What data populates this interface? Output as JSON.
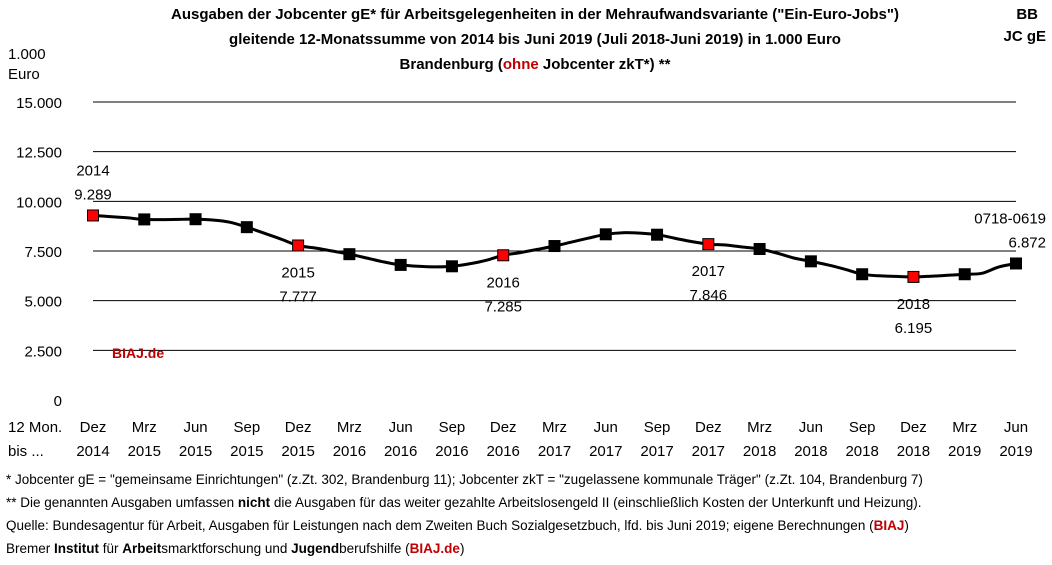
{
  "header": {
    "title_line1": "Ausgaben der Jobcenter gE* für Arbeitsgelegenheiten in der Mehraufwandsvariante (\"Ein-Euro-Jobs\")",
    "title_line2": "gleitende 12-Monatssumme von 2014 bis Juni 2019 (Juli 2018-Juni 2019) in 1.000 Euro",
    "title_line3_pre": "Brandenburg (",
    "title_line3_red": "ohne",
    "title_line3_post": " Jobcenter zkT*) **",
    "corner_line1": "BB",
    "corner_line2": "JC gE"
  },
  "yunit": {
    "line1": "1.000",
    "line2": "Euro"
  },
  "xunit": {
    "line1": "12 Mon.",
    "line2": "bis ..."
  },
  "watermark": "BIAJ.de",
  "colors": {
    "line": "#000000",
    "marker": "#000000",
    "highlight": "#ff0000",
    "accent": "#c00000",
    "grid": "#000000"
  },
  "chart_data": {
    "type": "line",
    "ylim": [
      0,
      15000
    ],
    "yticks": [
      0,
      2500,
      5000,
      7500,
      10000,
      12500,
      15000
    ],
    "ytick_labels": [
      "0",
      "2.500",
      "5.000",
      "7.500",
      "10.000",
      "12.500",
      "15.000"
    ],
    "grid": true,
    "categories": [
      "Dez 2014",
      "Jan 2015",
      "Feb 2015",
      "Mrz 2015",
      "Apr 2015",
      "Mai 2015",
      "Jun 2015",
      "Jul 2015",
      "Aug 2015",
      "Sep 2015",
      "Okt 2015",
      "Nov 2015",
      "Dez 2015",
      "Jan 2016",
      "Feb 2016",
      "Mrz 2016",
      "Apr 2016",
      "Mai 2016",
      "Jun 2016",
      "Jul 2016",
      "Aug 2016",
      "Sep 2016",
      "Okt 2016",
      "Nov 2016",
      "Dez 2016",
      "Jan 2017",
      "Feb 2017",
      "Mrz 2017",
      "Apr 2017",
      "Mai 2017",
      "Jun 2017",
      "Jul 2017",
      "Aug 2017",
      "Sep 2017",
      "Okt 2017",
      "Nov 2017",
      "Dez 2017",
      "Jan 2018",
      "Feb 2018",
      "Mrz 2018",
      "Apr 2018",
      "Mai 2018",
      "Jun 2018",
      "Jul 2018",
      "Aug 2018",
      "Sep 2018",
      "Okt 2018",
      "Nov 2018",
      "Dez 2018",
      "Jan 2019",
      "Feb 2019",
      "Mrz 2019",
      "Apr 2019",
      "Mai 2019",
      "Jun 2019"
    ],
    "x_tick_labels": [
      {
        "month": "Dez",
        "year": "2014",
        "index": 0
      },
      {
        "month": "Mrz",
        "year": "2015",
        "index": 3
      },
      {
        "month": "Jun",
        "year": "2015",
        "index": 6
      },
      {
        "month": "Sep",
        "year": "2015",
        "index": 9
      },
      {
        "month": "Dez",
        "year": "2015",
        "index": 12
      },
      {
        "month": "Mrz",
        "year": "2016",
        "index": 15
      },
      {
        "month": "Jun",
        "year": "2016",
        "index": 18
      },
      {
        "month": "Sep",
        "year": "2016",
        "index": 21
      },
      {
        "month": "Dez",
        "year": "2016",
        "index": 24
      },
      {
        "month": "Mrz",
        "year": "2017",
        "index": 27
      },
      {
        "month": "Jun",
        "year": "2017",
        "index": 30
      },
      {
        "month": "Sep",
        "year": "2017",
        "index": 33
      },
      {
        "month": "Dez",
        "year": "2017",
        "index": 36
      },
      {
        "month": "Mrz",
        "year": "2018",
        "index": 39
      },
      {
        "month": "Jun",
        "year": "2018",
        "index": 42
      },
      {
        "month": "Sep",
        "year": "2018",
        "index": 45
      },
      {
        "month": "Dez",
        "year": "2018",
        "index": 48
      },
      {
        "month": "Mrz",
        "year": "2019",
        "index": 51
      },
      {
        "month": "Jun",
        "year": "2019",
        "index": 54
      }
    ],
    "series": [
      {
        "values": [
          9289,
          9230,
          9170,
          9090,
          9080,
          9090,
          9100,
          9060,
          8950,
          8700,
          8400,
          8100,
          7777,
          7650,
          7500,
          7340,
          7150,
          6950,
          6800,
          6730,
          6700,
          6730,
          6850,
          7030,
          7285,
          7420,
          7580,
          7750,
          7950,
          8150,
          8340,
          8420,
          8400,
          8320,
          8150,
          7980,
          7846,
          7800,
          7700,
          7600,
          7400,
          7150,
          6980,
          6800,
          6580,
          6330,
          6250,
          6220,
          6195,
          6230,
          6280,
          6330,
          6380,
          6700,
          6872
        ]
      }
    ],
    "markers": [
      {
        "index": 0,
        "highlight": true
      },
      {
        "index": 3,
        "highlight": false
      },
      {
        "index": 6,
        "highlight": false
      },
      {
        "index": 9,
        "highlight": false
      },
      {
        "index": 12,
        "highlight": true
      },
      {
        "index": 15,
        "highlight": false
      },
      {
        "index": 18,
        "highlight": false
      },
      {
        "index": 21,
        "highlight": false
      },
      {
        "index": 24,
        "highlight": true
      },
      {
        "index": 27,
        "highlight": false
      },
      {
        "index": 30,
        "highlight": false
      },
      {
        "index": 33,
        "highlight": false
      },
      {
        "index": 36,
        "highlight": true
      },
      {
        "index": 39,
        "highlight": false
      },
      {
        "index": 42,
        "highlight": false
      },
      {
        "index": 45,
        "highlight": false
      },
      {
        "index": 48,
        "highlight": true
      },
      {
        "index": 51,
        "highlight": false
      },
      {
        "index": 54,
        "highlight": false
      }
    ],
    "annotations": [
      {
        "index": 0,
        "line1": "2014",
        "line2": "9.289",
        "position": "above"
      },
      {
        "index": 12,
        "line1": "2015",
        "line2": "7.777",
        "position": "below"
      },
      {
        "index": 24,
        "line1": "2016",
        "line2": "7.285",
        "position": "below"
      },
      {
        "index": 36,
        "line1": "2017",
        "line2": "7.846",
        "position": "below"
      },
      {
        "index": 48,
        "line1": "2018",
        "line2": "6.195",
        "position": "below"
      },
      {
        "index": 54,
        "line1": "0718-0619",
        "line2": "6.872",
        "position": "above"
      }
    ]
  },
  "footnotes": {
    "line1": "*    Jobcenter gE = \"gemeinsame Einrichtungen\" (z.Zt. 302, Brandenburg 11); Jobcenter zkT = \"zugelassene kommunale Träger\" (z.Zt. 104, Brandenburg 7)",
    "line2_pre": "** Die genannten Ausgaben umfassen ",
    "line2_bold": "nicht",
    "line2_post": " die Ausgaben für das weiter gezahlte Arbeitslosengeld II (einschließlich Kosten der Unterkunft und Heizung).",
    "line3_pre": "Quelle: Bundesagentur für Arbeit, Ausgaben für Leistungen nach dem Zweiten Buch Sozialgesetzbuch, lfd. bis Juni 2019; eigene Berechnungen (",
    "line3_red": "BIAJ",
    "line3_post": ")",
    "line4_a": "Bremer ",
    "line4_b": "Institut",
    "line4_c": " für ",
    "line4_d": "Arbeit",
    "line4_e": "smarktforschung und ",
    "line4_f": "Jugend",
    "line4_g": "berufshilfe (",
    "line4_h": "BIAJ.de",
    "line4_i": ")"
  }
}
